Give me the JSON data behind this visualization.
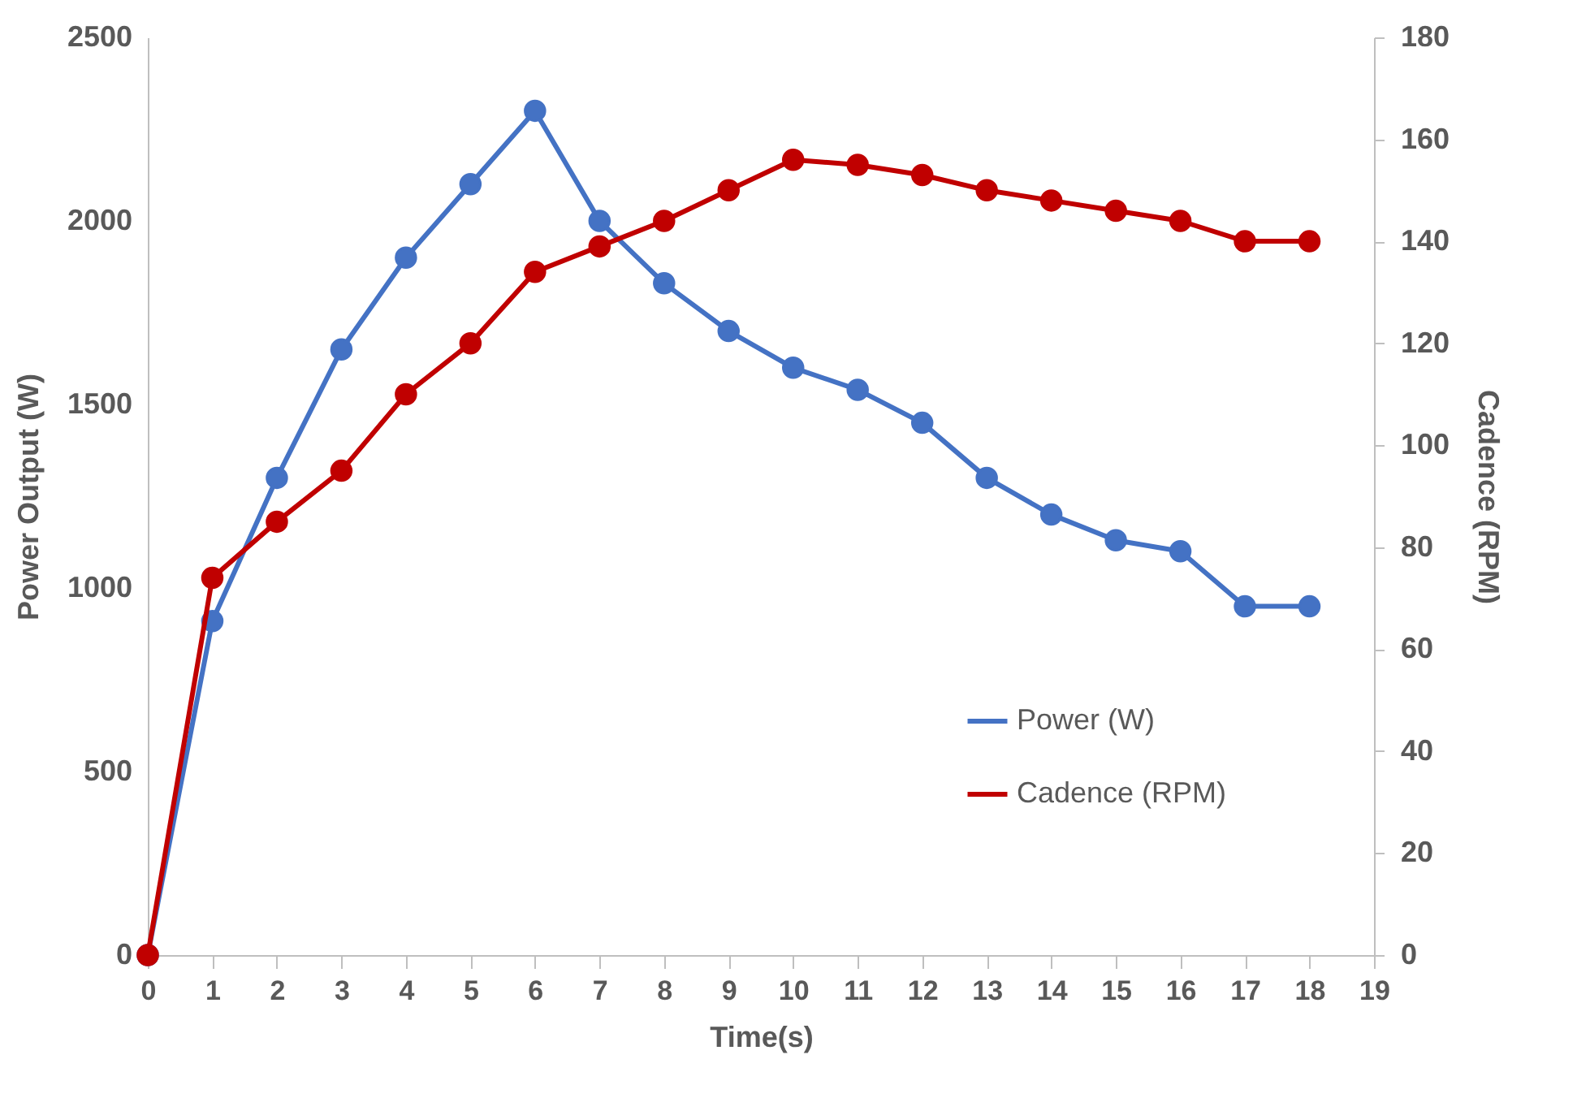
{
  "chart_data": {
    "type": "line",
    "xlabel": "Time(s)",
    "ylabel": "Power Output (W)",
    "y2label": "Cadence (RPM)",
    "x": [
      0,
      1,
      2,
      3,
      4,
      5,
      6,
      7,
      8,
      9,
      10,
      11,
      12,
      13,
      14,
      15,
      16,
      17,
      18
    ],
    "series": [
      {
        "name": "Power (W)",
        "color": "#4472c4",
        "values": [
          0,
          910,
          1300,
          1650,
          1900,
          2100,
          2300,
          2000,
          1830,
          1700,
          1600,
          1540,
          1450,
          1300,
          1200,
          1130,
          1100,
          950,
          950
        ]
      },
      {
        "name": "Cadence (RPM)",
        "color": "#c00000",
        "axis": "y2",
        "values": [
          0,
          74,
          85,
          95,
          110,
          120,
          134,
          139,
          144,
          150,
          156,
          155,
          153,
          150,
          148,
          146,
          144,
          140,
          140
        ]
      }
    ],
    "xlim": [
      0,
      19
    ],
    "xticks": [
      0,
      1,
      2,
      3,
      4,
      5,
      6,
      7,
      8,
      9,
      10,
      11,
      12,
      13,
      14,
      15,
      16,
      17,
      18,
      19
    ],
    "ylim": [
      0,
      2500
    ],
    "yticks": [
      0,
      500,
      1000,
      1500,
      2000,
      2500
    ],
    "y2lim": [
      0,
      180
    ],
    "y2ticks": [
      0,
      20,
      40,
      60,
      80,
      100,
      120,
      140,
      160,
      180
    ],
    "marker": "circle",
    "line_style": "solid",
    "grid": false,
    "legend": "bottom right"
  }
}
